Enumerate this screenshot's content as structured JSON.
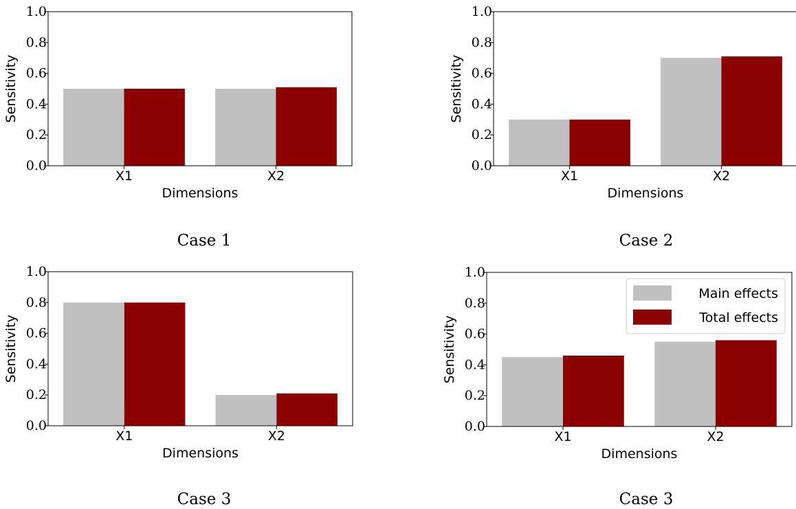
{
  "colors": {
    "main": "#c0c0c0",
    "total": "#8b0000"
  },
  "chart_data": [
    {
      "type": "bar",
      "caption": "Case 1",
      "xlabel": "Dimensions",
      "ylabel": "Sensitivity",
      "categories": [
        "X1",
        "X2"
      ],
      "ylim": [
        0,
        1.0
      ],
      "yticks": [
        "0.0",
        "0.2",
        "0.4",
        "0.6",
        "0.8",
        "1.0"
      ],
      "series": [
        {
          "name": "Main effects",
          "values": [
            0.5,
            0.5
          ]
        },
        {
          "name": "Total effects",
          "values": [
            0.5,
            0.51
          ]
        }
      ],
      "legend": false
    },
    {
      "type": "bar",
      "caption": "Case 2",
      "xlabel": "Dimensions",
      "ylabel": "Sensitivity",
      "categories": [
        "X1",
        "X2"
      ],
      "ylim": [
        0,
        1.0
      ],
      "yticks": [
        "0.0",
        "0.2",
        "0.4",
        "0.6",
        "0.8",
        "1.0"
      ],
      "series": [
        {
          "name": "Main effects",
          "values": [
            0.3,
            0.7
          ]
        },
        {
          "name": "Total effects",
          "values": [
            0.3,
            0.71
          ]
        }
      ],
      "legend": false
    },
    {
      "type": "bar",
      "caption": "Case 3",
      "xlabel": "Dimensions",
      "ylabel": "Sensitivity",
      "categories": [
        "X1",
        "X2"
      ],
      "ylim": [
        0,
        1.0
      ],
      "yticks": [
        "0.0",
        "0.2",
        "0.4",
        "0.6",
        "0.8",
        "1.0"
      ],
      "series": [
        {
          "name": "Main effects",
          "values": [
            0.8,
            0.2
          ]
        },
        {
          "name": "Total effects",
          "values": [
            0.8,
            0.21
          ]
        }
      ],
      "legend": false
    },
    {
      "type": "bar",
      "caption": "Case 3",
      "xlabel": "Dimensions",
      "ylabel": "Sensitivity",
      "categories": [
        "X1",
        "X2"
      ],
      "ylim": [
        0,
        1.0
      ],
      "yticks": [
        "0.0",
        "0.2",
        "0.4",
        "0.6",
        "0.8",
        "1.0"
      ],
      "series": [
        {
          "name": "Main effects",
          "values": [
            0.45,
            0.55
          ]
        },
        {
          "name": "Total effects",
          "values": [
            0.46,
            0.56
          ]
        }
      ],
      "legend": "top-right"
    }
  ]
}
